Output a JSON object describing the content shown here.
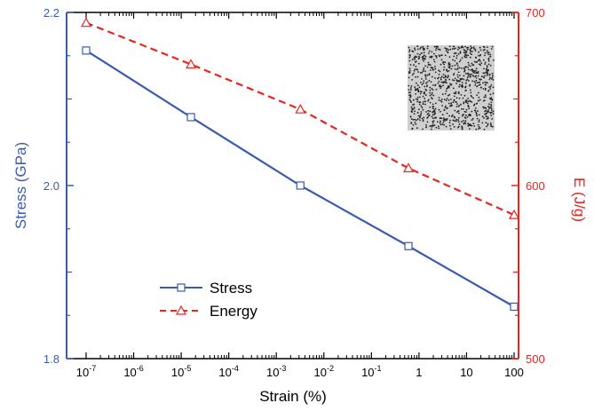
{
  "colors": {
    "stress": "#3b5bad",
    "energy": "#e8251e",
    "axis": "#000000"
  },
  "chart_data": {
    "type": "line",
    "xlabel": "Strain (%)",
    "x_scale": "log",
    "x": [
      1e-07,
      1.6e-05,
      0.0032,
      0.6,
      100
    ],
    "x_tick_labels": [
      {
        "value": 1e-07,
        "base": "10",
        "exp": "-7"
      },
      {
        "value": 1e-06,
        "base": "10",
        "exp": "-6"
      },
      {
        "value": 1e-05,
        "base": "10",
        "exp": "-5"
      },
      {
        "value": 0.0001,
        "base": "10",
        "exp": "-4"
      },
      {
        "value": 0.001,
        "base": "10",
        "exp": "-3"
      },
      {
        "value": 0.01,
        "base": "10",
        "exp": "-2"
      },
      {
        "value": 0.1,
        "base": "10",
        "exp": "-1"
      },
      {
        "value": 1,
        "base": "1",
        "exp": ""
      },
      {
        "value": 10,
        "base": "10",
        "exp": ""
      },
      {
        "value": 100,
        "base": "100",
        "exp": ""
      }
    ],
    "y_left": {
      "label": "Stress (GPa)",
      "ylim": [
        1.8,
        2.2
      ],
      "ticks": [
        "1.8",
        "2.0",
        "2.2"
      ]
    },
    "y_right": {
      "label": "E (J/g)",
      "ylim": [
        500,
        700
      ],
      "ticks": [
        "500",
        "600",
        "700"
      ]
    },
    "series": [
      {
        "name": "Stress",
        "axis": "left",
        "marker": "square",
        "line": "solid",
        "values": [
          2.156,
          2.079,
          2.0,
          1.93,
          1.86
        ]
      },
      {
        "name": "Energy",
        "axis": "right",
        "marker": "triangle",
        "line": "dashed",
        "values": [
          694,
          670,
          644,
          610,
          583
        ]
      }
    ],
    "legend": "bottom-left",
    "grid": false,
    "inset": "dot-pattern-image"
  }
}
